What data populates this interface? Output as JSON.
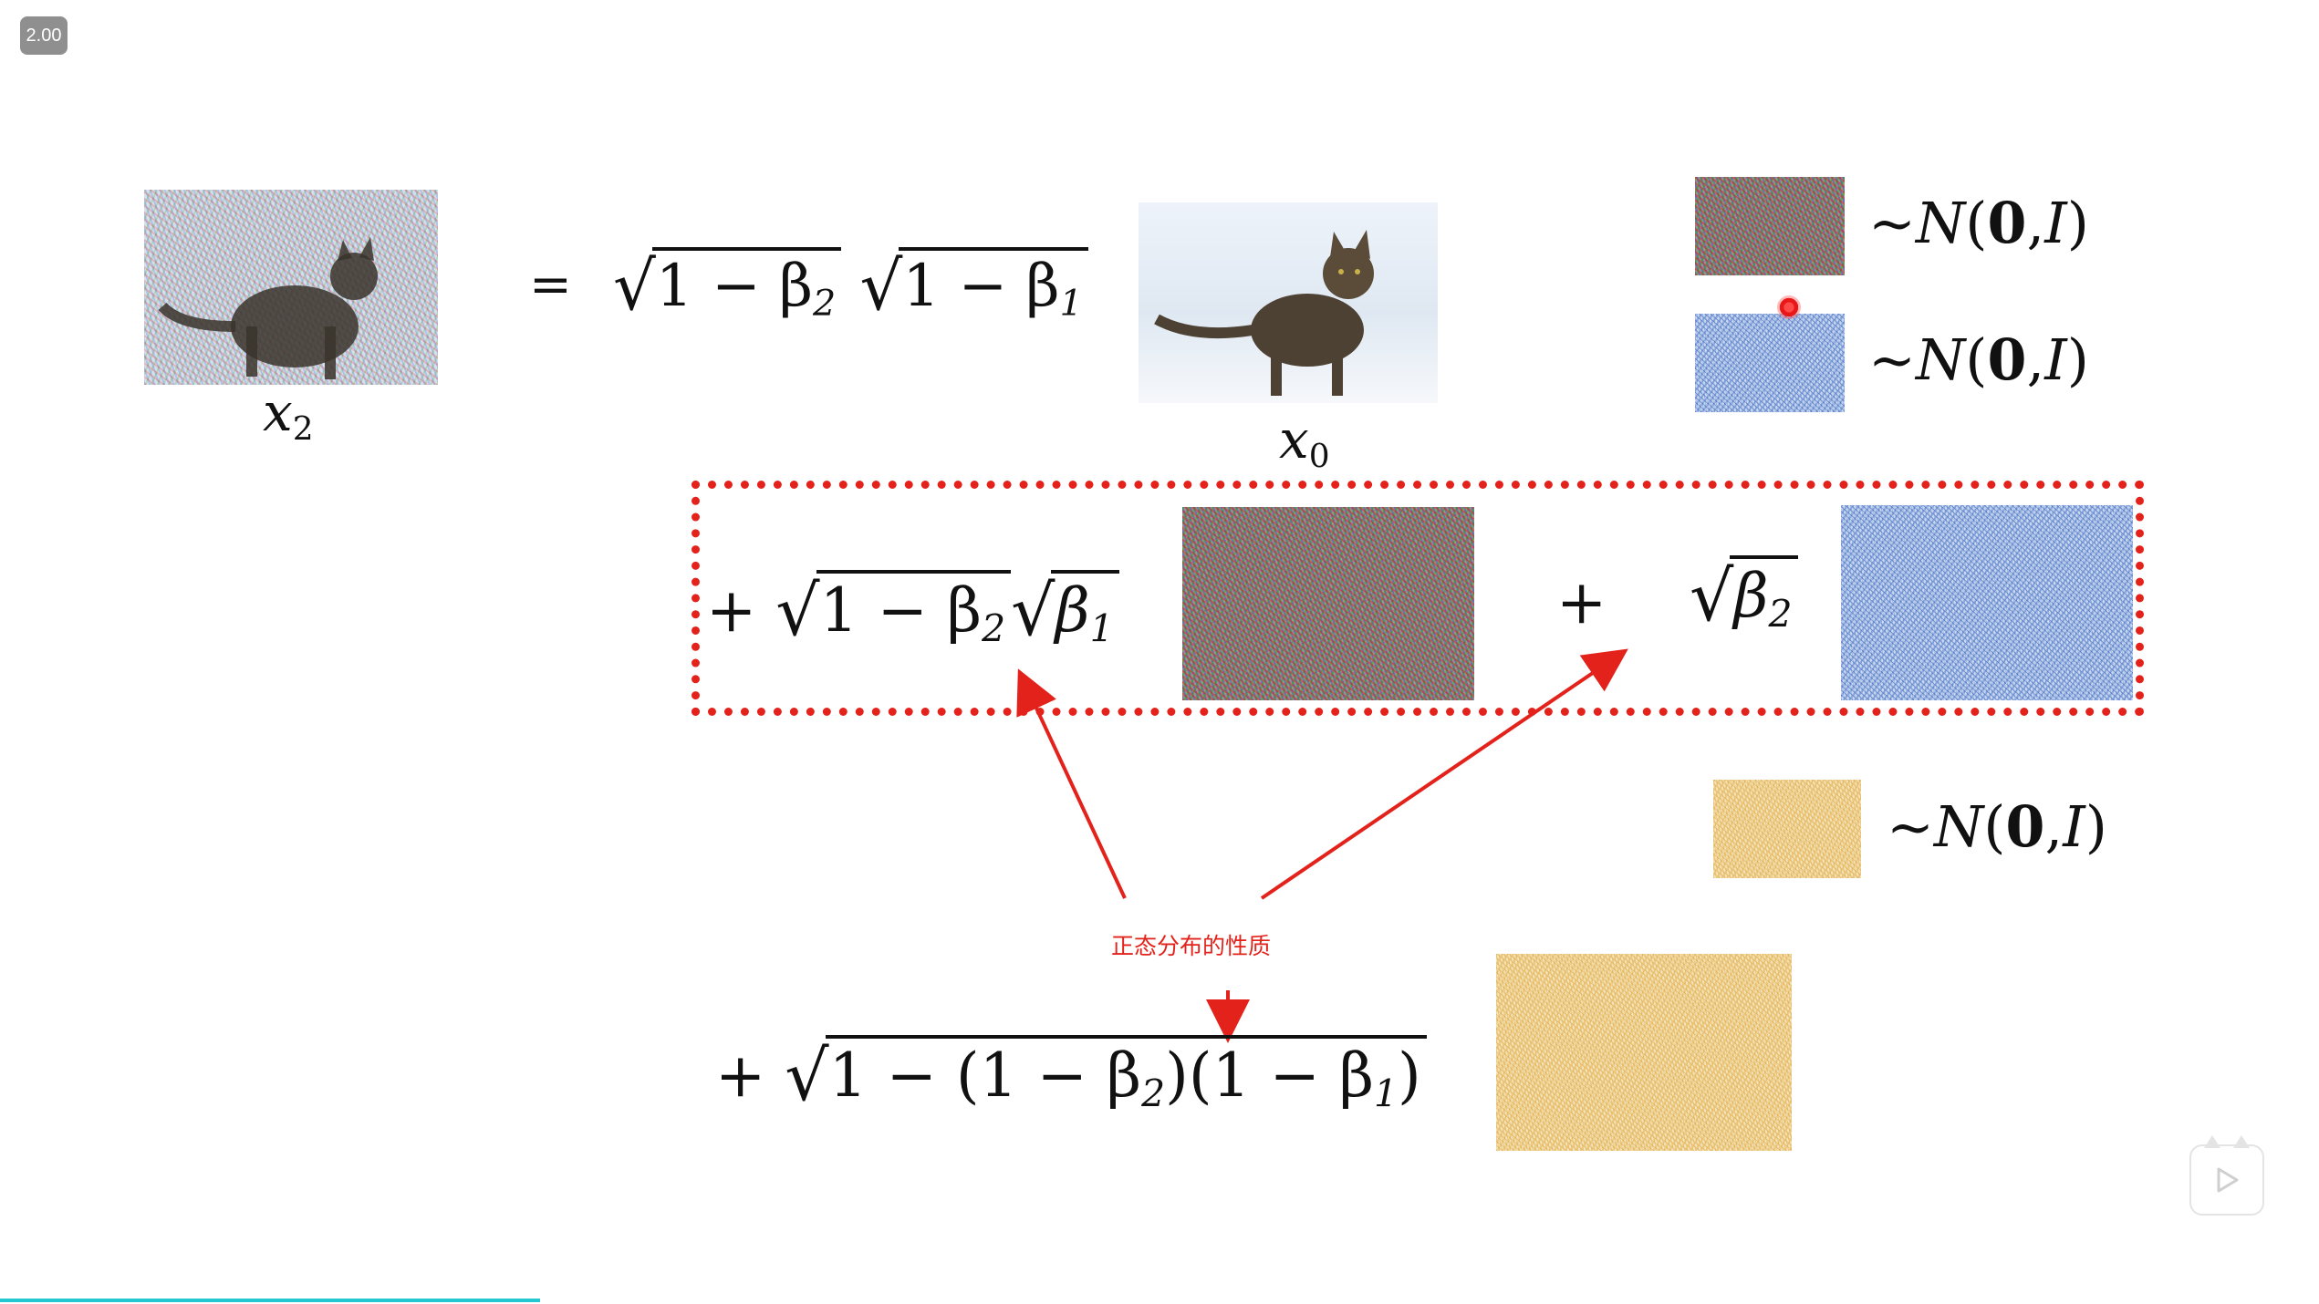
{
  "player": {
    "speed_badge": "2.00",
    "progress_fraction": 0.233
  },
  "equation": {
    "lhs_label": "x",
    "lhs_sub": "2",
    "equals": "=",
    "x0_label": "x",
    "x0_sub": "0",
    "term1_sqrt_a": "1 − β",
    "term1_sqrt_a_sub": "2",
    "term1_sqrt_b": "1 − β",
    "term1_sqrt_b_sub": "1",
    "term2_plus": "+",
    "term2_sqrt_a": "1 − β",
    "term2_sqrt_a_sub": "2",
    "term2_sqrt_b": "β",
    "term2_sqrt_b_sub": "1",
    "term3_plus": "+",
    "term3_sqrt": "β",
    "term3_sqrt_sub": "2",
    "term4_plus": "+",
    "term4_sqrt": "1 − (1 − β",
    "term4_sqrt_sub_a": "2",
    "term4_sqrt_mid": ")(1 − β",
    "term4_sqrt_sub_b": "1",
    "term4_sqrt_end": ")"
  },
  "distributions": {
    "tilde": "~",
    "N": "N",
    "open": "(",
    "zero": "0",
    "comma": ",",
    "I": "I",
    "close": ")"
  },
  "annotation": {
    "text": "正态分布的性质"
  },
  "colors": {
    "accent_red": "#e3231b",
    "progress": "#23c7d0"
  }
}
